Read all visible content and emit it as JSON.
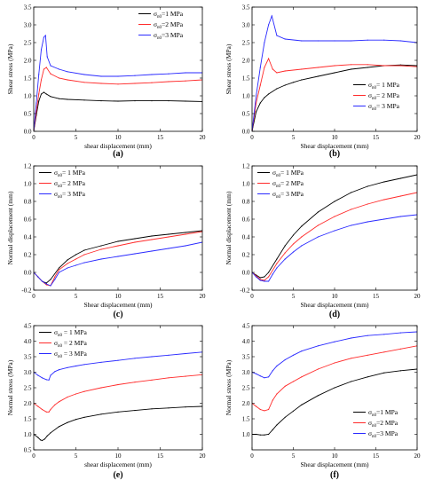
{
  "colors": {
    "s1": "#000000",
    "s2": "#ff2a2a",
    "s3": "#2a2aff"
  },
  "chart_data": [
    {
      "panel": "(a)",
      "type": "line",
      "xlabel": "shear displacement (mm)",
      "ylabel": "Shear stress (MPa)",
      "xlim": [
        0,
        20
      ],
      "ylim": [
        0,
        3.5
      ],
      "xticks": [
        0,
        5,
        10,
        15,
        20
      ],
      "yticks": [
        0.0,
        0.5,
        1.0,
        1.5,
        2.0,
        2.5,
        3.0,
        3.5
      ],
      "legend": "top-right",
      "series": [
        {
          "name": "σn0=1 MPa",
          "color": "#000000",
          "x": [
            0,
            0.3,
            0.6,
            0.9,
            1.2,
            1.5,
            2,
            3,
            4,
            6,
            8,
            10,
            12,
            14,
            16,
            18,
            20
          ],
          "y": [
            0,
            0.45,
            0.85,
            1.05,
            1.1,
            1.05,
            0.98,
            0.92,
            0.9,
            0.88,
            0.86,
            0.85,
            0.86,
            0.86,
            0.86,
            0.85,
            0.84
          ]
        },
        {
          "name": "σn0=2 MPa",
          "color": "#ff2a2a",
          "x": [
            0,
            0.3,
            0.6,
            0.9,
            1.2,
            1.5,
            2,
            3,
            4,
            6,
            8,
            10,
            12,
            14,
            16,
            18,
            20
          ],
          "y": [
            0,
            0.55,
            1.05,
            1.45,
            1.75,
            1.8,
            1.62,
            1.5,
            1.45,
            1.38,
            1.35,
            1.33,
            1.35,
            1.37,
            1.4,
            1.42,
            1.45
          ]
        },
        {
          "name": "σn0=3 MPa",
          "color": "#2a2aff",
          "x": [
            0,
            0.3,
            0.6,
            0.9,
            1.2,
            1.4,
            1.6,
            2,
            3,
            4,
            6,
            8,
            10,
            12,
            14,
            16,
            18,
            20
          ],
          "y": [
            0,
            0.8,
            1.6,
            2.3,
            2.65,
            2.7,
            2.1,
            1.85,
            1.75,
            1.68,
            1.6,
            1.55,
            1.55,
            1.57,
            1.6,
            1.62,
            1.65,
            1.65
          ]
        }
      ]
    },
    {
      "panel": "(b)",
      "type": "line",
      "xlabel": "Shear displacement (mm)",
      "ylabel": "Shear stress (MPa)",
      "xlim": [
        0,
        20
      ],
      "ylim": [
        0,
        3.5
      ],
      "xticks": [
        0,
        5,
        10,
        15,
        20
      ],
      "yticks": [
        0.0,
        0.5,
        1.0,
        1.5,
        2.0,
        2.5,
        3.0,
        3.5
      ],
      "legend": "center-right",
      "series": [
        {
          "name": "σn0= 1 MPa",
          "color": "#000000",
          "x": [
            0,
            0.5,
            1,
            1.5,
            2,
            3,
            4,
            5,
            6,
            8,
            10,
            12,
            14,
            16,
            18,
            20
          ],
          "y": [
            0,
            0.55,
            0.8,
            0.95,
            1.05,
            1.2,
            1.3,
            1.38,
            1.45,
            1.55,
            1.65,
            1.75,
            1.8,
            1.85,
            1.87,
            1.85
          ]
        },
        {
          "name": "σn0= 2 MPa",
          "color": "#ff2a2a",
          "x": [
            0,
            0.5,
            1,
            1.5,
            2,
            2.5,
            3,
            4,
            6,
            8,
            10,
            12,
            14,
            16,
            18,
            20
          ],
          "y": [
            0,
            0.8,
            1.3,
            1.8,
            2.05,
            1.75,
            1.65,
            1.7,
            1.75,
            1.8,
            1.85,
            1.88,
            1.88,
            1.85,
            1.85,
            1.82
          ]
        },
        {
          "name": "σn0= 3 MPa",
          "color": "#2a2aff",
          "x": [
            0,
            0.5,
            1,
            1.5,
            2,
            2.4,
            3,
            4,
            6,
            8,
            10,
            12,
            14,
            16,
            18,
            20
          ],
          "y": [
            0,
            1.0,
            1.8,
            2.5,
            3.0,
            3.25,
            2.7,
            2.6,
            2.55,
            2.55,
            2.55,
            2.55,
            2.57,
            2.57,
            2.55,
            2.5
          ]
        }
      ]
    },
    {
      "panel": "(c)",
      "type": "line",
      "xlabel": "Shear displacement (mm)",
      "ylabel": "Normal displacement (mm)",
      "xlim": [
        0,
        20
      ],
      "ylim": [
        -0.2,
        1.2
      ],
      "xticks": [
        0,
        5,
        10,
        15,
        20
      ],
      "yticks": [
        -0.2,
        0.0,
        0.2,
        0.4,
        0.6,
        0.8,
        1.0,
        1.2
      ],
      "legend": "top-left",
      "series": [
        {
          "name": "σn0= 1 MPa",
          "color": "#000000",
          "x": [
            0,
            0.5,
            1,
            1.5,
            2,
            3,
            4,
            5,
            6,
            8,
            10,
            12,
            14,
            16,
            18,
            20
          ],
          "y": [
            0,
            -0.05,
            -0.1,
            -0.12,
            -0.08,
            0.05,
            0.14,
            0.2,
            0.25,
            0.3,
            0.35,
            0.38,
            0.41,
            0.43,
            0.45,
            0.47
          ]
        },
        {
          "name": "σn0= 2 MPa",
          "color": "#ff2a2a",
          "x": [
            0,
            0.5,
            1,
            1.5,
            2,
            2.5,
            3,
            4,
            5,
            6,
            8,
            10,
            12,
            14,
            16,
            18,
            20
          ],
          "y": [
            0,
            -0.05,
            -0.1,
            -0.14,
            -0.15,
            -0.05,
            0.03,
            0.1,
            0.15,
            0.2,
            0.26,
            0.3,
            0.34,
            0.37,
            0.4,
            0.43,
            0.46
          ]
        },
        {
          "name": "σn0= 3 MPa",
          "color": "#2a2aff",
          "x": [
            0,
            0.5,
            1,
            1.5,
            2,
            2.5,
            3,
            4,
            5,
            6,
            8,
            10,
            12,
            14,
            16,
            18,
            20
          ],
          "y": [
            0,
            -0.05,
            -0.1,
            -0.13,
            -0.15,
            -0.08,
            0.0,
            0.05,
            0.08,
            0.11,
            0.15,
            0.18,
            0.21,
            0.24,
            0.27,
            0.3,
            0.34
          ]
        }
      ]
    },
    {
      "panel": "(d)",
      "type": "line",
      "xlabel": "Shear displacement (mm)",
      "ylabel": "Normal displacement (mm)",
      "xlim": [
        0,
        20
      ],
      "ylim": [
        -0.2,
        1.2
      ],
      "xticks": [
        0,
        5,
        10,
        15,
        20
      ],
      "yticks": [
        -0.2,
        0.0,
        0.2,
        0.4,
        0.6,
        0.8,
        1.0,
        1.2
      ],
      "legend": "top-left",
      "series": [
        {
          "name": "σn0= 1 MPa",
          "color": "#000000",
          "x": [
            0,
            0.5,
            1,
            1.5,
            2,
            3,
            4,
            5,
            6,
            8,
            10,
            12,
            14,
            16,
            18,
            20
          ],
          "y": [
            0,
            -0.03,
            -0.06,
            -0.05,
            0.0,
            0.15,
            0.3,
            0.42,
            0.52,
            0.68,
            0.8,
            0.9,
            0.97,
            1.02,
            1.06,
            1.1
          ]
        },
        {
          "name": "σn0= 2 MPa",
          "color": "#ff2a2a",
          "x": [
            0,
            0.5,
            1,
            1.5,
            2,
            3,
            4,
            5,
            6,
            8,
            10,
            12,
            14,
            16,
            18,
            20
          ],
          "y": [
            0,
            -0.04,
            -0.08,
            -0.09,
            -0.05,
            0.1,
            0.22,
            0.32,
            0.4,
            0.53,
            0.63,
            0.71,
            0.77,
            0.82,
            0.86,
            0.9
          ]
        },
        {
          "name": "σn0= 3 MPa",
          "color": "#2a2aff",
          "x": [
            0,
            0.5,
            1,
            1.5,
            2,
            2.5,
            3,
            4,
            5,
            6,
            8,
            10,
            12,
            14,
            16,
            18,
            20
          ],
          "y": [
            0,
            -0.05,
            -0.09,
            -0.1,
            -0.1,
            -0.02,
            0.05,
            0.15,
            0.23,
            0.3,
            0.4,
            0.47,
            0.53,
            0.57,
            0.6,
            0.63,
            0.65
          ]
        }
      ]
    },
    {
      "panel": "(e)",
      "type": "line",
      "xlabel": "shear displacement (mm)",
      "ylabel": "Normal stress (MPa)",
      "xlim": [
        0,
        20
      ],
      "ylim": [
        0.5,
        4.5
      ],
      "xticks": [
        0,
        5,
        10,
        15,
        20
      ],
      "yticks": [
        0.5,
        1.0,
        1.5,
        2.0,
        2.5,
        3.0,
        3.5,
        4.0,
        4.5
      ],
      "legend": "top-left",
      "series": [
        {
          "name": "σn0 = 1 MPa",
          "color": "#000000",
          "x": [
            0,
            0.5,
            0.8,
            1,
            1.3,
            1.6,
            2,
            3,
            4,
            5,
            6,
            8,
            10,
            12,
            14,
            16,
            18,
            20
          ],
          "y": [
            1.0,
            0.9,
            0.82,
            0.8,
            0.85,
            0.95,
            1.05,
            1.25,
            1.38,
            1.48,
            1.55,
            1.65,
            1.72,
            1.77,
            1.82,
            1.85,
            1.88,
            1.9
          ]
        },
        {
          "name": "σn0 = 2 MPa",
          "color": "#ff2a2a",
          "x": [
            0,
            0.5,
            1,
            1.5,
            1.8,
            2,
            2.5,
            3,
            4,
            5,
            6,
            8,
            10,
            12,
            14,
            16,
            18,
            20
          ],
          "y": [
            2.0,
            1.9,
            1.8,
            1.72,
            1.72,
            1.8,
            1.95,
            2.05,
            2.2,
            2.3,
            2.38,
            2.5,
            2.6,
            2.68,
            2.75,
            2.82,
            2.87,
            2.92
          ]
        },
        {
          "name": "σn0 = 3 MPa",
          "color": "#2a2aff",
          "x": [
            0,
            0.5,
            1,
            1.5,
            1.8,
            2,
            2.5,
            3,
            4,
            5,
            6,
            8,
            10,
            12,
            14,
            16,
            18,
            20
          ],
          "y": [
            3.0,
            2.9,
            2.82,
            2.76,
            2.75,
            2.9,
            3.02,
            3.08,
            3.15,
            3.2,
            3.25,
            3.32,
            3.38,
            3.45,
            3.5,
            3.55,
            3.6,
            3.65
          ]
        }
      ]
    },
    {
      "panel": "(f)",
      "type": "line",
      "xlabel": "Shear displacement (mm)",
      "ylabel": "Normal stress (MPa)",
      "xlim": [
        0,
        20
      ],
      "ylim": [
        0.5,
        4.5
      ],
      "xticks": [
        0,
        5,
        10,
        15,
        20
      ],
      "yticks": [
        1.0,
        1.5,
        2.0,
        2.5,
        3.0,
        3.5,
        4.0,
        4.5
      ],
      "legend": "bottom-right",
      "series": [
        {
          "name": "σn0=1 MPa",
          "color": "#000000",
          "x": [
            0,
            0.5,
            1,
            1.5,
            2,
            2.5,
            3,
            4,
            5,
            6,
            8,
            10,
            12,
            14,
            16,
            18,
            20
          ],
          "y": [
            1.0,
            1.0,
            0.98,
            0.98,
            1.0,
            1.15,
            1.3,
            1.55,
            1.75,
            1.95,
            2.25,
            2.5,
            2.7,
            2.85,
            2.98,
            3.05,
            3.1
          ]
        },
        {
          "name": "σn0=2 MPa",
          "color": "#ff2a2a",
          "x": [
            0,
            0.5,
            1,
            1.5,
            2,
            2.5,
            3,
            4,
            5,
            6,
            8,
            10,
            12,
            14,
            16,
            18,
            20
          ],
          "y": [
            2.0,
            1.9,
            1.8,
            1.76,
            1.8,
            2.1,
            2.3,
            2.55,
            2.7,
            2.85,
            3.1,
            3.3,
            3.45,
            3.55,
            3.65,
            3.75,
            3.85
          ]
        },
        {
          "name": "σn0=3 MPa",
          "color": "#2a2aff",
          "x": [
            0,
            0.5,
            1,
            1.5,
            2,
            2.5,
            3,
            4,
            5,
            6,
            8,
            10,
            12,
            14,
            16,
            18,
            20
          ],
          "y": [
            3.0,
            2.95,
            2.88,
            2.82,
            2.85,
            3.05,
            3.2,
            3.4,
            3.55,
            3.68,
            3.85,
            3.98,
            4.1,
            4.18,
            4.22,
            4.27,
            4.3
          ]
        }
      ]
    }
  ]
}
